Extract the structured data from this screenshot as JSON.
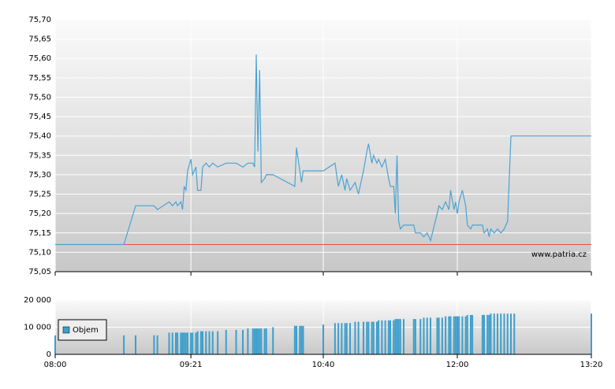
{
  "chart_data": [
    {
      "type": "line",
      "x": [
        "08:00",
        "08:41",
        "08:48",
        "08:59",
        "09:01",
        "09:08",
        "09:10",
        "09:12",
        "09:13",
        "09:15",
        "09:16",
        "09:17",
        "09:18",
        "09:19",
        "09:21",
        "09:22",
        "09:24",
        "09:25",
        "09:27",
        "09:28",
        "09:30",
        "09:32",
        "09:34",
        "09:37",
        "09:42",
        "09:48",
        "09:52",
        "09:55",
        "09:58",
        "09:59",
        "10:00",
        "10:01",
        "10:02",
        "10:03",
        "10:05",
        "10:06",
        "10:10",
        "10:23",
        "10:24",
        "10:26",
        "10:27",
        "10:28",
        "10:40",
        "10:47",
        "10:49",
        "10:51",
        "10:53",
        "10:54",
        "10:56",
        "10:59",
        "11:01",
        "11:04",
        "11:06",
        "11:07",
        "11:09",
        "11:10",
        "11:12",
        "11:13",
        "11:15",
        "11:17",
        "11:19",
        "11:20",
        "11:22",
        "11:23",
        "11:24",
        "11:25",
        "11:26",
        "11:28",
        "11:34",
        "11:35",
        "11:38",
        "11:40",
        "11:42",
        "11:44",
        "11:48",
        "11:49",
        "11:51",
        "11:53",
        "11:55",
        "11:56",
        "11:58",
        "11:59",
        "12:00",
        "12:01",
        "12:03",
        "12:05",
        "12:06",
        "12:08",
        "12:09",
        "12:15",
        "12:16",
        "12:18",
        "12:19",
        "12:20",
        "12:22",
        "12:24",
        "12:26",
        "12:28",
        "12:30",
        "12:32",
        "12:34",
        "13:20"
      ],
      "values": [
        75.12,
        75.12,
        75.22,
        75.22,
        75.21,
        75.23,
        75.22,
        75.23,
        75.22,
        75.23,
        75.21,
        75.27,
        75.26,
        75.31,
        75.34,
        75.3,
        75.32,
        75.26,
        75.26,
        75.32,
        75.33,
        75.32,
        75.33,
        75.32,
        75.33,
        75.33,
        75.32,
        75.33,
        75.33,
        75.32,
        75.61,
        75.36,
        75.57,
        75.28,
        75.29,
        75.3,
        75.3,
        75.27,
        75.37,
        75.31,
        75.28,
        75.31,
        75.31,
        75.33,
        75.27,
        75.3,
        75.26,
        75.29,
        75.26,
        75.28,
        75.25,
        75.31,
        75.36,
        75.38,
        75.33,
        75.35,
        75.33,
        75.34,
        75.32,
        75.34,
        75.29,
        75.27,
        75.27,
        75.2,
        75.35,
        75.18,
        75.16,
        75.17,
        75.17,
        75.15,
        75.15,
        75.14,
        75.15,
        75.13,
        75.2,
        75.22,
        75.21,
        75.23,
        75.21,
        75.26,
        75.21,
        75.23,
        75.2,
        75.23,
        75.26,
        75.22,
        75.17,
        75.16,
        75.17,
        75.17,
        75.15,
        75.16,
        75.14,
        75.16,
        75.15,
        75.16,
        75.15,
        75.16,
        75.18,
        75.4,
        75.4,
        75.4
      ],
      "color": "#4ba3d3",
      "reference": 75.12,
      "reference_color": "#e05050",
      "xlim": [
        "08:00",
        "13:20"
      ],
      "xticks": [
        "08:00",
        "09:21",
        "10:40",
        "12:00",
        "13:20"
      ],
      "ylim": [
        75.05,
        75.7
      ],
      "yticks": [
        {
          "value": 75.05,
          "label": "75,05"
        },
        {
          "value": 75.1,
          "label": "75,10"
        },
        {
          "value": 75.15,
          "label": "75,15"
        },
        {
          "value": 75.2,
          "label": "75,20"
        },
        {
          "value": 75.25,
          "label": "75,25"
        },
        {
          "value": 75.3,
          "label": "75,30"
        },
        {
          "value": 75.35,
          "label": "75,35"
        },
        {
          "value": 75.4,
          "label": "75,40"
        },
        {
          "value": 75.45,
          "label": "75,45"
        },
        {
          "value": 75.5,
          "label": "75,50"
        },
        {
          "value": 75.55,
          "label": "75,55"
        },
        {
          "value": 75.6,
          "label": "75,60"
        },
        {
          "value": 75.65,
          "label": "75,65"
        },
        {
          "value": 75.7,
          "label": "75,70"
        }
      ],
      "grid": true,
      "watermark": "www.patria.cz"
    },
    {
      "type": "bar",
      "x": [
        "08:00",
        "08:41",
        "08:48",
        "08:59",
        "09:01",
        "09:08",
        "09:10",
        "09:12",
        "09:13",
        "09:15",
        "09:16",
        "09:17",
        "09:18",
        "09:19",
        "09:21",
        "09:22",
        "09:24",
        "09:25",
        "09:27",
        "09:28",
        "09:30",
        "09:32",
        "09:34",
        "09:37",
        "09:42",
        "09:48",
        "09:52",
        "09:55",
        "09:58",
        "09:59",
        "10:00",
        "10:01",
        "10:02",
        "10:03",
        "10:05",
        "10:06",
        "10:10",
        "10:23",
        "10:24",
        "10:26",
        "10:27",
        "10:28",
        "10:40",
        "10:47",
        "10:49",
        "10:51",
        "10:53",
        "10:54",
        "10:56",
        "10:59",
        "11:01",
        "11:04",
        "11:06",
        "11:07",
        "11:09",
        "11:10",
        "11:12",
        "11:13",
        "11:15",
        "11:17",
        "11:19",
        "11:20",
        "11:22",
        "11:23",
        "11:24",
        "11:25",
        "11:26",
        "11:28",
        "11:34",
        "11:35",
        "11:38",
        "11:40",
        "11:42",
        "11:44",
        "11:48",
        "11:49",
        "11:51",
        "11:53",
        "11:55",
        "11:56",
        "11:58",
        "11:59",
        "12:00",
        "12:01",
        "12:03",
        "12:05",
        "12:06",
        "12:08",
        "12:09",
        "12:15",
        "12:16",
        "12:18",
        "12:19",
        "12:20",
        "12:22",
        "12:24",
        "12:26",
        "12:28",
        "12:30",
        "12:32",
        "12:34",
        "13:20"
      ],
      "series": [
        {
          "name": "Objem",
          "color": "#3d9fcc",
          "values": [
            7000,
            7000,
            7000,
            7000,
            7000,
            8000,
            8000,
            8000,
            8000,
            8000,
            8000,
            8000,
            8000,
            8000,
            8000,
            8000,
            8000,
            8500,
            8500,
            8500,
            8500,
            8500,
            8500,
            8500,
            9000,
            9000,
            9000,
            9500,
            9500,
            9500,
            9500,
            9500,
            9500,
            9500,
            9500,
            9500,
            10000,
            10500,
            10500,
            10500,
            10500,
            10500,
            11000,
            11500,
            11500,
            11500,
            11500,
            11500,
            11500,
            12000,
            12000,
            12000,
            12000,
            12000,
            12000,
            12000,
            12000,
            12500,
            12500,
            12500,
            12500,
            12500,
            12500,
            13000,
            13000,
            13000,
            13000,
            13000,
            13000,
            13000,
            13000,
            13500,
            13500,
            13500,
            13500,
            13500,
            13500,
            14000,
            14000,
            14000,
            14000,
            14000,
            14000,
            14000,
            14000,
            14000,
            14500,
            14500,
            14500,
            14500,
            14500,
            14500,
            14500,
            15000,
            15000,
            15000,
            15000,
            15000,
            15000,
            15000,
            15000,
            15000
          ]
        }
      ],
      "xlim": [
        "08:00",
        "13:20"
      ],
      "xticks": [
        "08:00",
        "09:21",
        "10:40",
        "12:00",
        "13:20"
      ],
      "ylim": [
        0,
        20000
      ],
      "yticks": [
        0,
        {
          "value": 10000,
          "label": "10 000"
        },
        {
          "value": 20000,
          "label": "20 000"
        }
      ],
      "grid": true
    }
  ]
}
